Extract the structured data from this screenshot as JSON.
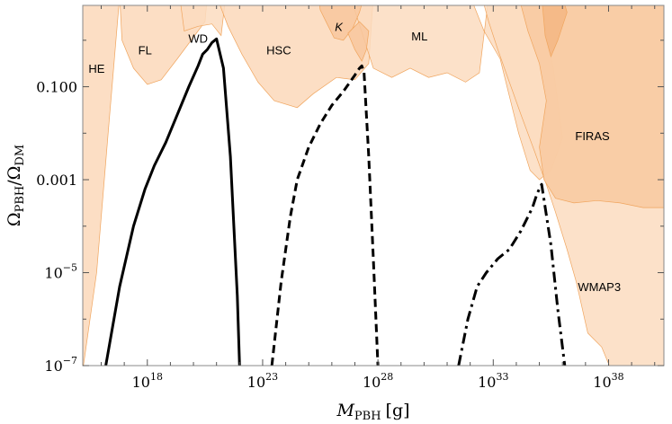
{
  "chart_data": {
    "type": "line",
    "xlabel_main": "M",
    "xlabel_sub": "PBH",
    "xlabel_unit": "[g]",
    "ylabel_num_sym": "Ω",
    "ylabel_num_sub": "PBH",
    "ylabel_sep": "/",
    "ylabel_den_sym": "Ω",
    "ylabel_den_sub": "DM",
    "x_scale": "log",
    "y_scale": "log",
    "xlim_log10": [
      15.2,
      40.4
    ],
    "ylim_log10": [
      -7,
      0.75
    ],
    "x_ticks": [
      {
        "base": "10",
        "exp": "18",
        "log": 18
      },
      {
        "base": "10",
        "exp": "23",
        "log": 23
      },
      {
        "base": "10",
        "exp": "28",
        "log": 28
      },
      {
        "base": "10",
        "exp": "33",
        "log": 33
      },
      {
        "base": "10",
        "exp": "38",
        "log": 38
      }
    ],
    "y_ticks": [
      {
        "text": "0.100",
        "log": -1
      },
      {
        "text": "0.001",
        "log": -3
      },
      {
        "base": "10",
        "exp": "−5",
        "log": -5
      },
      {
        "base": "10",
        "exp": "−7",
        "log": -7
      }
    ],
    "regions": [
      {
        "label": "HE",
        "label_at": [
          15.8,
          -0.7
        ]
      },
      {
        "label": "FL",
        "label_at": [
          17.9,
          -0.3
        ]
      },
      {
        "label": "WD",
        "label_at": [
          20.2,
          -0.05
        ]
      },
      {
        "label": "HSC",
        "label_at": [
          23.7,
          -0.3
        ]
      },
      {
        "label": "K",
        "label_at": [
          26.3,
          0.2
        ],
        "italic": true
      },
      {
        "label": "ML",
        "label_at": [
          29.8,
          0.0
        ]
      },
      {
        "label": "FIRAS",
        "label_at": [
          37.3,
          -2.15
        ]
      },
      {
        "label": "WMAP3",
        "label_at": [
          37.6,
          -5.4
        ]
      }
    ],
    "series": [
      {
        "style": "solid",
        "x": [
          16.2,
          16.8,
          17.4,
          17.9,
          18.3,
          18.8,
          19.3,
          19.8,
          20.2,
          20.4,
          20.6,
          20.8,
          21.0,
          21.3,
          21.6,
          21.9,
          22.0
        ],
        "y": [
          -7.0,
          -5.3,
          -4.0,
          -3.2,
          -2.7,
          -2.2,
          -1.6,
          -1.0,
          -0.55,
          -0.3,
          -0.2,
          -0.05,
          0.03,
          -0.6,
          -2.5,
          -5.5,
          -7.0
        ]
      },
      {
        "style": "dashed",
        "x": [
          23.4,
          23.8,
          24.2,
          24.5,
          25.0,
          25.5,
          26.0,
          26.5,
          27.0,
          27.2,
          27.3,
          27.4,
          27.6,
          27.8,
          28.0
        ],
        "y": [
          -7.0,
          -5.2,
          -3.8,
          -3.0,
          -2.3,
          -1.8,
          -1.4,
          -1.1,
          -0.75,
          -0.6,
          -0.55,
          -0.7,
          -2.5,
          -4.7,
          -7.0
        ]
      },
      {
        "style": "dashdot",
        "x": [
          31.5,
          31.9,
          32.3,
          32.7,
          33.2,
          33.7,
          34.2,
          34.7,
          34.9,
          35.1,
          35.5,
          35.8,
          36.1
        ],
        "y": [
          -7.0,
          -6.0,
          -5.3,
          -5.0,
          -4.7,
          -4.5,
          -4.1,
          -3.6,
          -3.3,
          -3.1,
          -4.4,
          -5.8,
          -7.0
        ]
      }
    ],
    "grid": false,
    "legend": "none"
  }
}
